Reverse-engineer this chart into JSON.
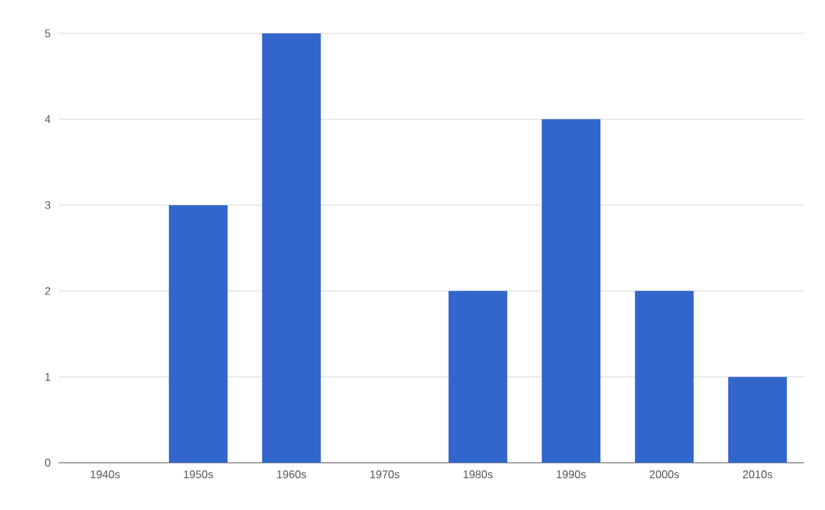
{
  "chart_data": {
    "type": "bar",
    "categories": [
      "1940s",
      "1950s",
      "1960s",
      "1970s",
      "1980s",
      "1990s",
      "2000s",
      "2010s"
    ],
    "values": [
      0,
      3,
      5,
      0,
      2,
      4,
      2,
      1
    ],
    "color": "#3366cc",
    "ylim": [
      0,
      5
    ],
    "yticks": [
      0,
      1,
      2,
      3,
      4,
      5
    ],
    "grid": "y"
  }
}
